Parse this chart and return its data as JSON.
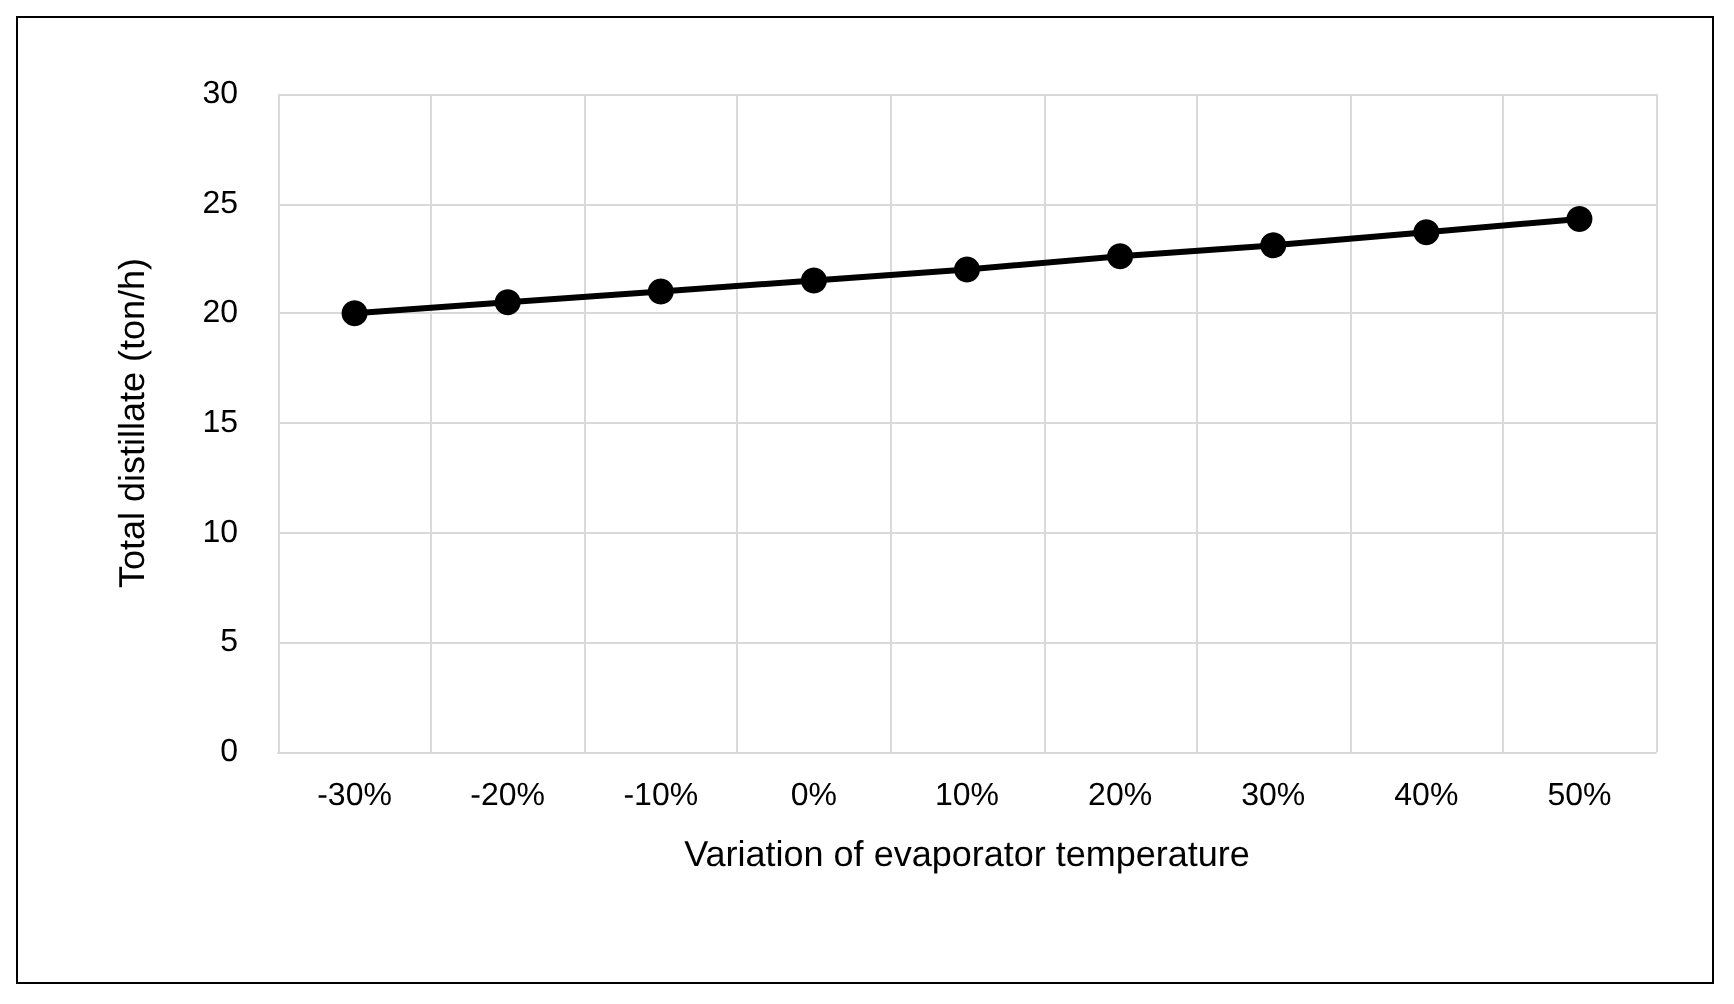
{
  "chart_data": {
    "type": "line",
    "xlabel": "Variation of evaporator temperature",
    "ylabel": "Total distillate (ton/h)",
    "categories": [
      "-30%",
      "-20%",
      "-10%",
      "0%",
      "10%",
      "20%",
      "30%",
      "40%",
      "50%"
    ],
    "series": [
      {
        "color": "#000000",
        "values": [
          20.0,
          20.5,
          21.0,
          21.5,
          22.0,
          22.6,
          23.1,
          23.7,
          24.3
        ]
      }
    ],
    "ylim": [
      0,
      30
    ],
    "yticks": [
      0,
      5,
      10,
      15,
      20,
      25,
      30
    ],
    "grid": true,
    "marker": "circle",
    "line_style": "solid"
  }
}
